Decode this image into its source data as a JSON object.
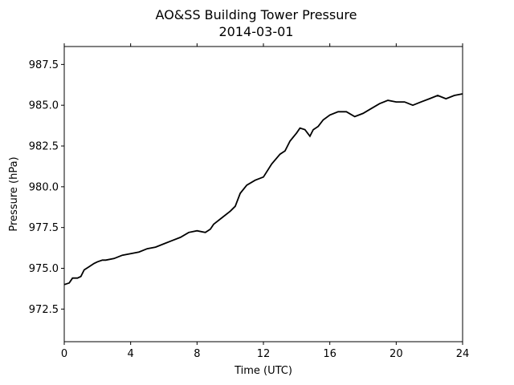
{
  "chart_data": {
    "type": "line",
    "title": "AO&SS Building Tower Pressure",
    "subtitle": "2014-03-01",
    "xlabel": "Time (UTC)",
    "ylabel": "Pressure (hPa)",
    "xlim": [
      0,
      24
    ],
    "ylim": [
      970.5,
      988.6
    ],
    "xticks": [
      0,
      4,
      8,
      12,
      16,
      20,
      24
    ],
    "yticks": [
      972.5,
      975.0,
      977.5,
      980.0,
      982.5,
      985.0,
      987.5
    ],
    "ytick_labels": [
      "972.5",
      "975.0",
      "977.5",
      "980.0",
      "982.5",
      "985.0",
      "987.5"
    ],
    "grid": false,
    "line_color": "#000000",
    "series": [
      {
        "x": [
          0,
          0.3,
          0.5,
          0.8,
          1.0,
          1.2,
          1.5,
          1.8,
          2.0,
          2.3,
          2.5,
          3.0,
          3.5,
          4.0,
          4.5,
          5.0,
          5.5,
          6.0,
          6.5,
          7.0,
          7.5,
          8.0,
          8.5,
          8.8,
          9.0,
          9.5,
          10.0,
          10.3,
          10.6,
          11.0,
          11.5,
          12.0,
          12.5,
          13.0,
          13.3,
          13.6,
          14.0,
          14.2,
          14.5,
          14.8,
          15.0,
          15.3,
          15.6,
          16.0,
          16.5,
          17.0,
          17.5,
          18.0,
          18.5,
          19.0,
          19.5,
          20.0,
          20.5,
          21.0,
          21.5,
          22.0,
          22.5,
          23.0,
          23.5,
          24.0
        ],
        "y": [
          974.0,
          974.1,
          974.4,
          974.4,
          974.5,
          974.9,
          975.1,
          975.3,
          975.4,
          975.5,
          975.5,
          975.6,
          975.8,
          975.9,
          976.0,
          976.2,
          976.3,
          976.5,
          976.7,
          976.9,
          977.2,
          977.3,
          977.2,
          977.4,
          977.7,
          978.1,
          978.5,
          978.8,
          979.6,
          980.1,
          980.4,
          980.6,
          981.4,
          982.0,
          982.2,
          982.8,
          983.3,
          983.6,
          983.5,
          983.1,
          983.5,
          983.7,
          984.1,
          984.4,
          984.6,
          984.6,
          984.3,
          984.5,
          984.8,
          985.1,
          985.3,
          985.2,
          985.2,
          985.0,
          985.2,
          985.4,
          985.6,
          985.4,
          985.6,
          985.7
        ]
      }
    ]
  }
}
